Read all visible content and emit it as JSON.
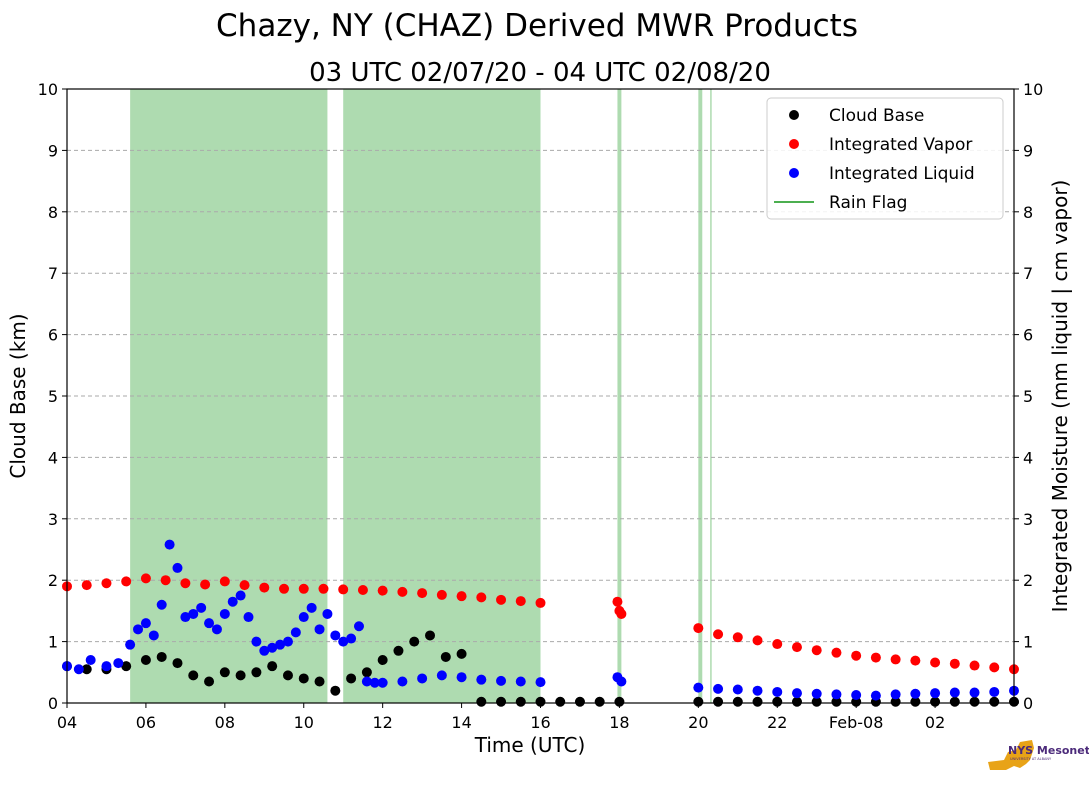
{
  "chart_data": {
    "type": "scatter",
    "title": "Chazy, NY (CHAZ) Derived MWR Products",
    "subtitle": "03 UTC 02/07/20 - 04 UTC 02/08/20",
    "xlabel": "Time (UTC)",
    "ylabel": "Cloud Base (km)",
    "y2label": "Integrated Moisture (mm liquid | cm vapor)",
    "x_unit": "hours since 2020-02-07 04 UTC",
    "xlim": [
      0,
      24
    ],
    "ylim": [
      0,
      10
    ],
    "y2lim": [
      0,
      10
    ],
    "x_ticks": [
      0,
      2,
      4,
      6,
      8,
      10,
      12,
      14,
      16,
      18,
      20,
      22
    ],
    "x_tick_labels": [
      "04",
      "06",
      "08",
      "10",
      "12",
      "14",
      "16",
      "18",
      "20",
      "22",
      "Feb-08",
      "02"
    ],
    "y_ticks": [
      0,
      1,
      2,
      3,
      4,
      5,
      6,
      7,
      8,
      9,
      10
    ],
    "grid": true,
    "legend_position": "top-right",
    "legend": [
      {
        "label": "Cloud Base",
        "color": "#000000",
        "kind": "dot"
      },
      {
        "label": "Integrated Vapor",
        "color": "#ff0000",
        "kind": "dot"
      },
      {
        "label": "Integrated Liquid",
        "color": "#0000ff",
        "kind": "dot"
      },
      {
        "label": "Rain Flag",
        "color": "#4caf50",
        "kind": "line"
      }
    ],
    "rain_flag_color": "#4caf50",
    "rain_flag_spans": [
      [
        1.6,
        6.6
      ],
      [
        7.0,
        12.0
      ],
      [
        13.95,
        14.05
      ],
      [
        16.0,
        16.1
      ],
      [
        16.3,
        16.33
      ]
    ],
    "series": [
      {
        "name": "Cloud Base",
        "color": "#000000",
        "x": [
          0.0,
          0.5,
          1.0,
          1.5,
          2.0,
          2.4,
          2.8,
          3.2,
          3.6,
          4.0,
          4.4,
          4.8,
          5.2,
          5.6,
          6.0,
          6.4,
          6.8,
          7.2,
          7.6,
          8.0,
          8.4,
          8.8,
          9.2,
          9.6,
          10.0,
          10.5,
          11.0,
          11.5,
          12.0,
          12.5,
          13.0,
          13.5,
          14.0,
          16.0,
          16.5,
          17.0,
          17.5,
          18.0,
          18.5,
          19.0,
          19.5,
          20.0,
          20.5,
          21.0,
          21.5,
          22.0,
          22.5,
          23.0,
          23.5,
          24.0
        ],
        "y": [
          0.6,
          0.55,
          0.55,
          0.6,
          0.7,
          0.75,
          0.65,
          0.45,
          0.35,
          0.5,
          0.45,
          0.5,
          0.6,
          0.45,
          0.4,
          0.35,
          0.2,
          0.4,
          0.5,
          0.7,
          0.85,
          1.0,
          1.1,
          0.75,
          0.8,
          0.02,
          0.02,
          0.02,
          0.02,
          0.02,
          0.02,
          0.02,
          0.02,
          0.02,
          0.02,
          0.02,
          0.02,
          0.02,
          0.02,
          0.02,
          0.02,
          0.02,
          0.02,
          0.02,
          0.02,
          0.02,
          0.02,
          0.02,
          0.02,
          0.02
        ]
      },
      {
        "name": "Integrated Vapor",
        "color": "#ff0000",
        "x": [
          0.0,
          0.5,
          1.0,
          1.5,
          2.0,
          2.5,
          3.0,
          3.5,
          4.0,
          4.5,
          5.0,
          5.5,
          6.0,
          6.5,
          7.0,
          7.5,
          8.0,
          8.5,
          9.0,
          9.5,
          10.0,
          10.5,
          11.0,
          11.5,
          12.0,
          13.95,
          14.0,
          14.05,
          16.0,
          16.5,
          17.0,
          17.5,
          18.0,
          18.5,
          19.0,
          19.5,
          20.0,
          20.5,
          21.0,
          21.5,
          22.0,
          22.5,
          23.0,
          23.5,
          24.0
        ],
        "y": [
          1.9,
          1.92,
          1.95,
          1.98,
          2.03,
          2.0,
          1.95,
          1.93,
          1.98,
          1.92,
          1.88,
          1.86,
          1.86,
          1.86,
          1.85,
          1.84,
          1.83,
          1.81,
          1.79,
          1.76,
          1.74,
          1.72,
          1.68,
          1.66,
          1.63,
          1.65,
          1.5,
          1.45,
          1.22,
          1.12,
          1.07,
          1.02,
          0.96,
          0.91,
          0.86,
          0.82,
          0.77,
          0.74,
          0.71,
          0.69,
          0.66,
          0.64,
          0.61,
          0.58,
          0.55
        ]
      },
      {
        "name": "Integrated Liquid",
        "color": "#0000ff",
        "x": [
          0.0,
          0.3,
          0.6,
          1.0,
          1.3,
          1.6,
          1.8,
          2.0,
          2.2,
          2.4,
          2.6,
          2.8,
          3.0,
          3.2,
          3.4,
          3.6,
          3.8,
          4.0,
          4.2,
          4.4,
          4.6,
          4.8,
          5.0,
          5.2,
          5.4,
          5.6,
          5.8,
          6.0,
          6.2,
          6.4,
          6.6,
          6.8,
          7.0,
          7.2,
          7.4,
          7.6,
          7.8,
          8.0,
          8.5,
          9.0,
          9.5,
          10.0,
          10.5,
          11.0,
          11.5,
          12.0,
          13.95,
          14.05,
          16.0,
          16.5,
          17.0,
          17.5,
          18.0,
          18.5,
          19.0,
          19.5,
          20.0,
          20.5,
          21.0,
          21.5,
          22.0,
          22.5,
          23.0,
          23.5,
          24.0
        ],
        "y": [
          0.6,
          0.55,
          0.7,
          0.6,
          0.65,
          0.95,
          1.2,
          1.3,
          1.1,
          1.6,
          2.58,
          2.2,
          1.4,
          1.45,
          1.55,
          1.3,
          1.2,
          1.45,
          1.65,
          1.75,
          1.4,
          1.0,
          0.85,
          0.9,
          0.95,
          1.0,
          1.15,
          1.4,
          1.55,
          1.2,
          1.45,
          1.1,
          1.0,
          1.05,
          1.25,
          0.35,
          0.33,
          0.33,
          0.35,
          0.4,
          0.45,
          0.42,
          0.38,
          0.36,
          0.35,
          0.34,
          0.42,
          0.35,
          0.25,
          0.23,
          0.22,
          0.2,
          0.18,
          0.16,
          0.15,
          0.14,
          0.13,
          0.12,
          0.14,
          0.15,
          0.16,
          0.17,
          0.17,
          0.18,
          0.2
        ]
      }
    ]
  },
  "logo": {
    "text": "NYS Mesonet",
    "subtext": "UNIVERSITY AT ALBANY",
    "color": "#e8a317"
  }
}
